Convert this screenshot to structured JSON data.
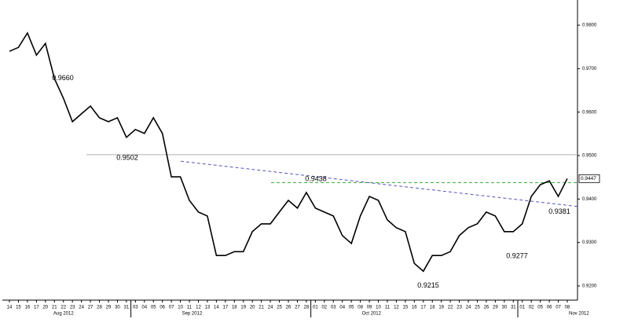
{
  "chart_data": {
    "type": "line",
    "categories": [
      "14",
      "15",
      "16",
      "17",
      "20",
      "21",
      "22",
      "23",
      "24",
      "27",
      "28",
      "29",
      "30",
      "31",
      "03",
      "04",
      "05",
      "06",
      "07",
      "10",
      "11",
      "12",
      "13",
      "14",
      "17",
      "18",
      "19",
      "20",
      "21",
      "24",
      "25",
      "26",
      "27",
      "28",
      "01",
      "02",
      "03",
      "04",
      "05",
      "08",
      "09",
      "10",
      "11",
      "12",
      "15",
      "16",
      "17",
      "18",
      "19",
      "22",
      "23",
      "24",
      "25",
      "26",
      "29",
      "30",
      "31",
      "01",
      "02",
      "05",
      "06",
      "07",
      "08"
    ],
    "months": [
      "Aug 2012",
      "Sep 2012",
      "Oct 2012",
      "Nov 2012"
    ],
    "series": [
      {
        "color": "#000000",
        "values": [
          0.974,
          0.9749,
          0.9782,
          0.9731,
          0.9758,
          0.9677,
          0.9632,
          0.9578,
          0.9596,
          0.9614,
          0.9587,
          0.9578,
          0.9587,
          0.9542,
          0.956,
          0.9551,
          0.9587,
          0.9551,
          0.9451,
          0.9451,
          0.9397,
          0.937,
          0.9361,
          0.927,
          0.927,
          0.9279,
          0.9279,
          0.9325,
          0.9343,
          0.9343,
          0.937,
          0.9397,
          0.9379,
          0.9415,
          0.9379,
          0.937,
          0.9361,
          0.9316,
          0.9298,
          0.9361,
          0.9406,
          0.9397,
          0.9352,
          0.9334,
          0.9325,
          0.9252,
          0.9234,
          0.927,
          0.927,
          0.9279,
          0.9316,
          0.9334,
          0.9343,
          0.937,
          0.9361,
          0.9325,
          0.9325,
          0.9343,
          0.9406,
          0.9433,
          0.9442,
          0.9406,
          0.9447
        ]
      }
    ],
    "ylim": [
      0.9171,
      0.9858
    ],
    "yticks": [
      {
        "value": 0.92,
        "label": "0.9200"
      },
      {
        "value": 0.93,
        "label": "0.9300"
      },
      {
        "value": 0.94,
        "label": "0.9400"
      },
      {
        "value": 0.95,
        "label": "0.9500"
      },
      {
        "value": 0.96,
        "label": "0.9600"
      },
      {
        "value": 0.97,
        "label": "0.9700"
      },
      {
        "value": 0.98,
        "label": "0.9800"
      }
    ],
    "annotations": [
      {
        "value": 0.966,
        "label": "0.9660"
      },
      {
        "value": 0.9502,
        "label": "0.9502"
      },
      {
        "value": 0.9438,
        "label": "0.9438"
      },
      {
        "value": 0.9381,
        "label": "0.9381"
      },
      {
        "value": 0.9277,
        "label": "0.9277"
      },
      {
        "value": 0.9215,
        "label": "0.9215"
      }
    ],
    "reference_lines": [
      {
        "value": 0.9502,
        "color": "#b0b0b0",
        "style": "solid"
      },
      {
        "value": 0.9438,
        "color": "#33aa33",
        "style": "dashed"
      }
    ],
    "trend_line": {
      "values": [
        0.9487,
        0.9383
      ],
      "color": "#5555bb"
    },
    "last_label": {
      "value": 0.9447,
      "label": "0.9447"
    }
  }
}
